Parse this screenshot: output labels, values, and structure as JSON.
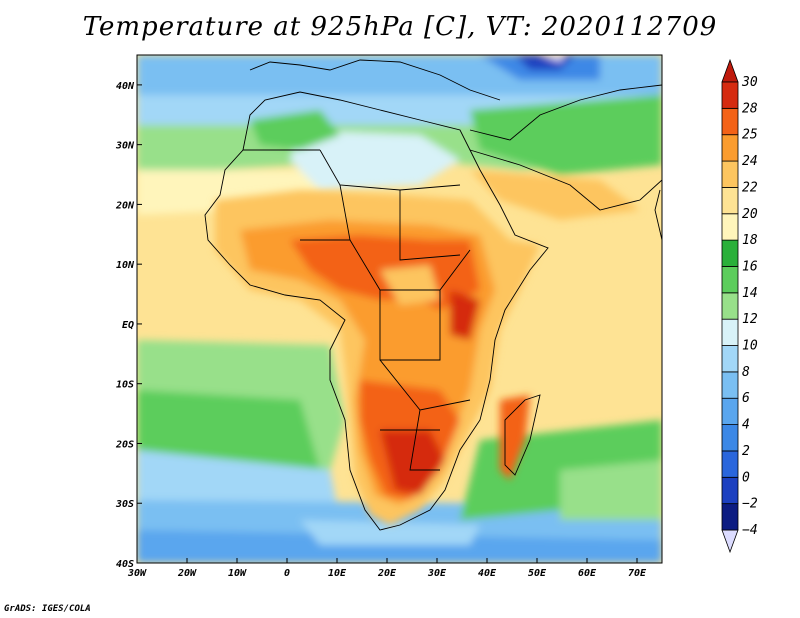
{
  "title": "Temperature at 925hPa [C], VT: 2020112709",
  "credit": "GrADS: IGES/COLA",
  "map": {
    "lon_range": [
      -30,
      75
    ],
    "lat_range": [
      -40,
      45
    ],
    "lon_ticks": [
      {
        "value": -30,
        "label": "30W"
      },
      {
        "value": -20,
        "label": "20W"
      },
      {
        "value": -10,
        "label": "10W"
      },
      {
        "value": 0,
        "label": "0"
      },
      {
        "value": 10,
        "label": "10E"
      },
      {
        "value": 20,
        "label": "20E"
      },
      {
        "value": 30,
        "label": "30E"
      },
      {
        "value": 40,
        "label": "40E"
      },
      {
        "value": 50,
        "label": "50E"
      },
      {
        "value": 60,
        "label": "60E"
      },
      {
        "value": 70,
        "label": "70E"
      }
    ],
    "lat_ticks": [
      {
        "value": 40,
        "label": "40N"
      },
      {
        "value": 30,
        "label": "30N"
      },
      {
        "value": 20,
        "label": "20N"
      },
      {
        "value": 10,
        "label": "10N"
      },
      {
        "value": 0,
        "label": "EQ"
      },
      {
        "value": -10,
        "label": "10S"
      },
      {
        "value": -20,
        "label": "20S"
      },
      {
        "value": -30,
        "label": "30S"
      },
      {
        "value": -40,
        "label": "40S"
      }
    ]
  },
  "colorbar": {
    "levels": [
      -4,
      -2,
      0,
      2,
      4,
      6,
      8,
      10,
      12,
      14,
      16,
      18,
      20,
      22,
      24,
      25,
      28,
      30
    ],
    "colors": [
      "#dcdcff",
      "#0c1c82",
      "#1c40c0",
      "#2a66dc",
      "#3c88e6",
      "#5aa6ee",
      "#7abff2",
      "#a2d7f7",
      "#d8f2f8",
      "#98e08a",
      "#5ccd5c",
      "#2ab03a",
      "#fff5bb",
      "#fee394",
      "#fdc55f",
      "#fb9c2e",
      "#f36217",
      "#d52b10",
      "#bf1a0c"
    ]
  }
}
